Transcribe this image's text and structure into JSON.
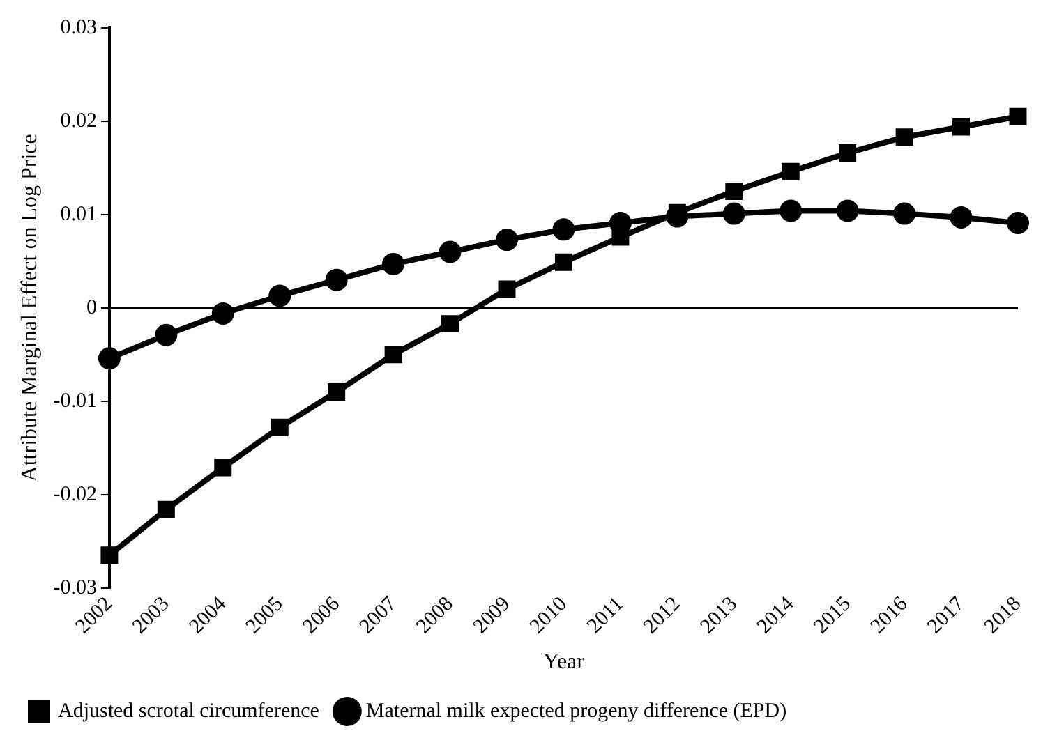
{
  "chart_data": {
    "type": "line",
    "xlabel": "Year",
    "ylabel": "Attribute Marginal Effect on Log Price",
    "categories": [
      "2002",
      "2003",
      "2004",
      "2005",
      "2006",
      "2007",
      "2008",
      "2009",
      "2010",
      "2011",
      "2012",
      "2013",
      "2014",
      "2015",
      "2016",
      "2017",
      "2018"
    ],
    "series": [
      {
        "name": "Adjusted scrotal circumference",
        "color": "#000000",
        "marker": "square",
        "values": [
          -0.0265,
          -0.0216,
          -0.0171,
          -0.0128,
          -0.009,
          -0.005,
          -0.0017,
          0.002,
          0.0049,
          0.0076,
          0.0102,
          0.0125,
          0.0146,
          0.0166,
          0.0183,
          0.0194,
          0.0205
        ]
      },
      {
        "name": "Maternal milk expected progeny difference (EPD)",
        "color": "#000000",
        "marker": "circle",
        "values": [
          -0.0054,
          -0.0029,
          -0.0006,
          0.0013,
          0.003,
          0.0047,
          0.006,
          0.0073,
          0.0084,
          0.0091,
          0.0098,
          0.0101,
          0.0104,
          0.0104,
          0.0101,
          0.0097,
          0.0091
        ]
      }
    ],
    "ylim": [
      -0.03,
      0.03
    ],
    "yticks": [
      -0.03,
      -0.02,
      -0.01,
      0,
      0.01,
      0.02,
      0.03
    ],
    "legend": "bottom",
    "line_style": "solid"
  }
}
